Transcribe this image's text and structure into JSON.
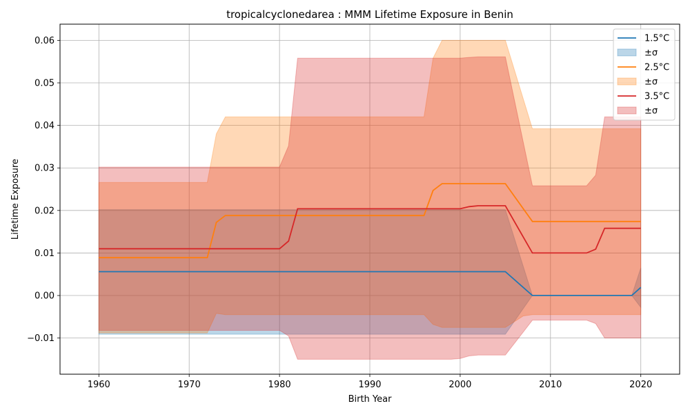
{
  "chart_data": {
    "type": "line",
    "title": "tropicalcyclonedarea : MMM Lifetime Exposure in Benin",
    "xlabel": "Birth Year",
    "ylabel": "Lifetime Exposure",
    "xlim": [
      1955.7,
      2024.3
    ],
    "ylim": [
      -0.0185,
      0.0638
    ],
    "xticks": [
      1960,
      1970,
      1980,
      1990,
      2000,
      2010,
      2020
    ],
    "xtick_labels": [
      "1960",
      "1970",
      "1980",
      "1990",
      "2000",
      "2010",
      "2020"
    ],
    "yticks": [
      -0.01,
      0.0,
      0.01,
      0.02,
      0.03,
      0.04,
      0.05,
      0.06
    ],
    "ytick_labels": [
      "−0.01",
      "0.00",
      "0.01",
      "0.02",
      "0.03",
      "0.04",
      "0.05",
      "0.06"
    ],
    "grid": true,
    "legend_position": "top-right",
    "series": [
      {
        "name": "1.5°C",
        "band_label": "±σ",
        "color": "#1f77b4",
        "band_color": "#1f77b4",
        "points": [
          [
            1960,
            0.0056
          ],
          [
            2005,
            0.0056
          ],
          [
            2008,
            0.0
          ],
          [
            2019,
            0.0
          ],
          [
            2020,
            0.0019
          ]
        ],
        "upper": [
          [
            1960,
            0.0202
          ],
          [
            2005,
            0.0202
          ],
          [
            2008,
            0.0
          ],
          [
            2019,
            0.0
          ],
          [
            2020,
            0.0065
          ]
        ],
        "lower": [
          [
            1960,
            -0.0091
          ],
          [
            2005,
            -0.0091
          ],
          [
            2008,
            0.0
          ],
          [
            2019,
            0.0
          ],
          [
            2020,
            -0.0028
          ]
        ]
      },
      {
        "name": "2.5°C",
        "band_label": "±σ",
        "color": "#ff7f0e",
        "band_color": "#ff7f0e",
        "points": [
          [
            1960,
            0.0089
          ],
          [
            1972,
            0.0089
          ],
          [
            1973,
            0.0172
          ],
          [
            1974,
            0.0188
          ],
          [
            1996,
            0.0188
          ],
          [
            1997,
            0.0247
          ],
          [
            1998,
            0.0263
          ],
          [
            2005,
            0.0263
          ],
          [
            2008,
            0.0174
          ],
          [
            2020,
            0.0174
          ]
        ],
        "upper": [
          [
            1960,
            0.0266
          ],
          [
            1972,
            0.0266
          ],
          [
            1973,
            0.038
          ],
          [
            1974,
            0.042
          ],
          [
            1996,
            0.042
          ],
          [
            1997,
            0.0558
          ],
          [
            1998,
            0.06
          ],
          [
            2005,
            0.06
          ],
          [
            2008,
            0.0392
          ],
          [
            2015,
            0.0392
          ],
          [
            2020,
            0.0392
          ]
        ],
        "lower": [
          [
            1960,
            -0.0088
          ],
          [
            1972,
            -0.0088
          ],
          [
            1973,
            -0.0042
          ],
          [
            1974,
            -0.0045
          ],
          [
            1996,
            -0.0045
          ],
          [
            1997,
            -0.0068
          ],
          [
            1998,
            -0.0075
          ],
          [
            2005,
            -0.0075
          ],
          [
            2007,
            -0.0048
          ],
          [
            2008,
            -0.0045
          ],
          [
            2020,
            -0.0045
          ]
        ]
      },
      {
        "name": "3.5°C",
        "band_label": "±σ",
        "color": "#d62728",
        "band_color": "#d62728",
        "points": [
          [
            1960,
            0.011
          ],
          [
            1980,
            0.011
          ],
          [
            1981,
            0.0128
          ],
          [
            1982,
            0.0204
          ],
          [
            2000,
            0.0204
          ],
          [
            2001,
            0.0209
          ],
          [
            2002,
            0.0211
          ],
          [
            2005,
            0.0211
          ],
          [
            2008,
            0.01
          ],
          [
            2014,
            0.01
          ],
          [
            2015,
            0.0109
          ],
          [
            2016,
            0.0158
          ],
          [
            2020,
            0.0158
          ]
        ],
        "upper": [
          [
            1960,
            0.0302
          ],
          [
            1980,
            0.0302
          ],
          [
            1981,
            0.0352
          ],
          [
            1982,
            0.0558
          ],
          [
            2000,
            0.0558
          ],
          [
            2001,
            0.056
          ],
          [
            2002,
            0.0561
          ],
          [
            2005,
            0.0561
          ],
          [
            2008,
            0.0258
          ],
          [
            2014,
            0.0258
          ],
          [
            2015,
            0.0283
          ],
          [
            2016,
            0.042
          ],
          [
            2020,
            0.042
          ]
        ],
        "lower": [
          [
            1960,
            -0.0082
          ],
          [
            1980,
            -0.0082
          ],
          [
            1981,
            -0.0095
          ],
          [
            1982,
            -0.015
          ],
          [
            1999,
            -0.015
          ],
          [
            2000,
            -0.0148
          ],
          [
            2001,
            -0.0142
          ],
          [
            2002,
            -0.014
          ],
          [
            2005,
            -0.014
          ],
          [
            2008,
            -0.0058
          ],
          [
            2014,
            -0.0058
          ],
          [
            2015,
            -0.0066
          ],
          [
            2016,
            -0.01
          ],
          [
            2020,
            -0.01
          ]
        ]
      }
    ]
  }
}
